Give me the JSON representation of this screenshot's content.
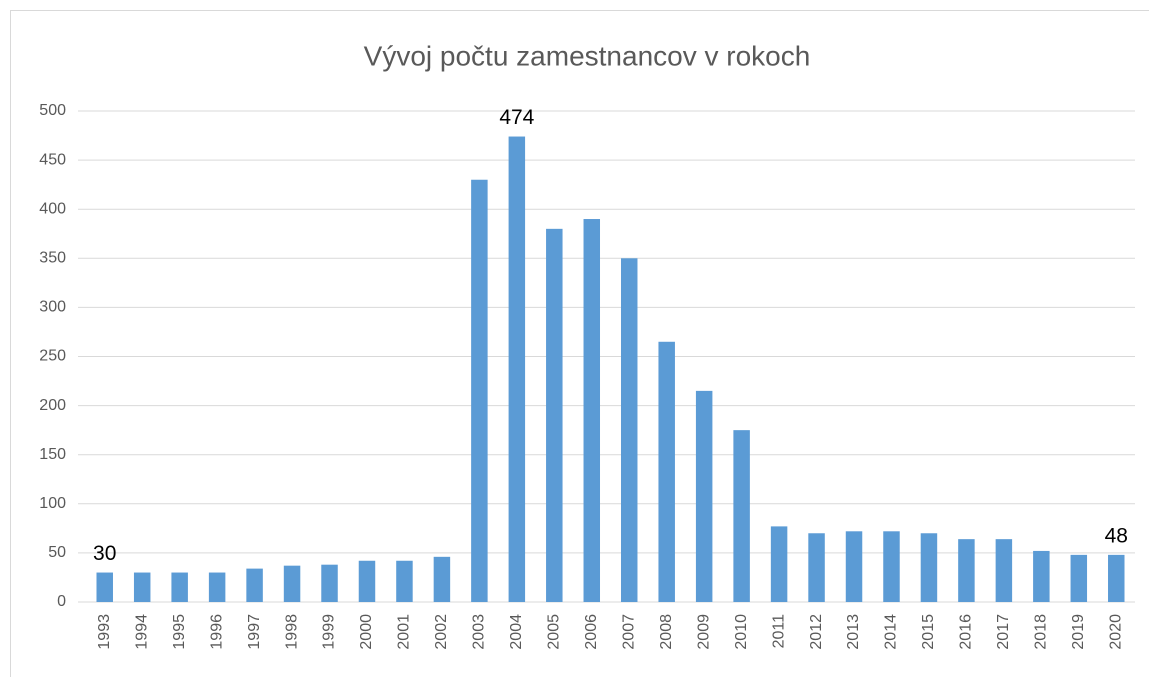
{
  "chart_data": {
    "type": "bar",
    "title": "Vývoj počtu zamestnancov v rokoch",
    "categories": [
      "1993",
      "1994",
      "1995",
      "1996",
      "1997",
      "1998",
      "1999",
      "2000",
      "2001",
      "2002",
      "2003",
      "2004",
      "2005",
      "2006",
      "2007",
      "2008",
      "2009",
      "2010",
      "2011",
      "2012",
      "2013",
      "2014",
      "2015",
      "2016",
      "2017",
      "2018",
      "2019",
      "2020"
    ],
    "values": [
      30,
      30,
      30,
      30,
      34,
      37,
      38,
      42,
      42,
      46,
      430,
      474,
      380,
      390,
      350,
      265,
      215,
      175,
      77,
      70,
      72,
      72,
      70,
      64,
      64,
      52,
      48,
      48
    ],
    "value_labels": [
      "30",
      null,
      null,
      null,
      null,
      null,
      null,
      null,
      null,
      null,
      null,
      "474",
      null,
      null,
      null,
      null,
      null,
      null,
      null,
      null,
      null,
      null,
      null,
      null,
      null,
      null,
      null,
      "48"
    ],
    "color": "#5b9bd5",
    "ylim": [
      0,
      500
    ],
    "yticks": [
      0,
      50,
      100,
      150,
      200,
      250,
      300,
      350,
      400,
      450,
      500
    ],
    "grid": true
  }
}
